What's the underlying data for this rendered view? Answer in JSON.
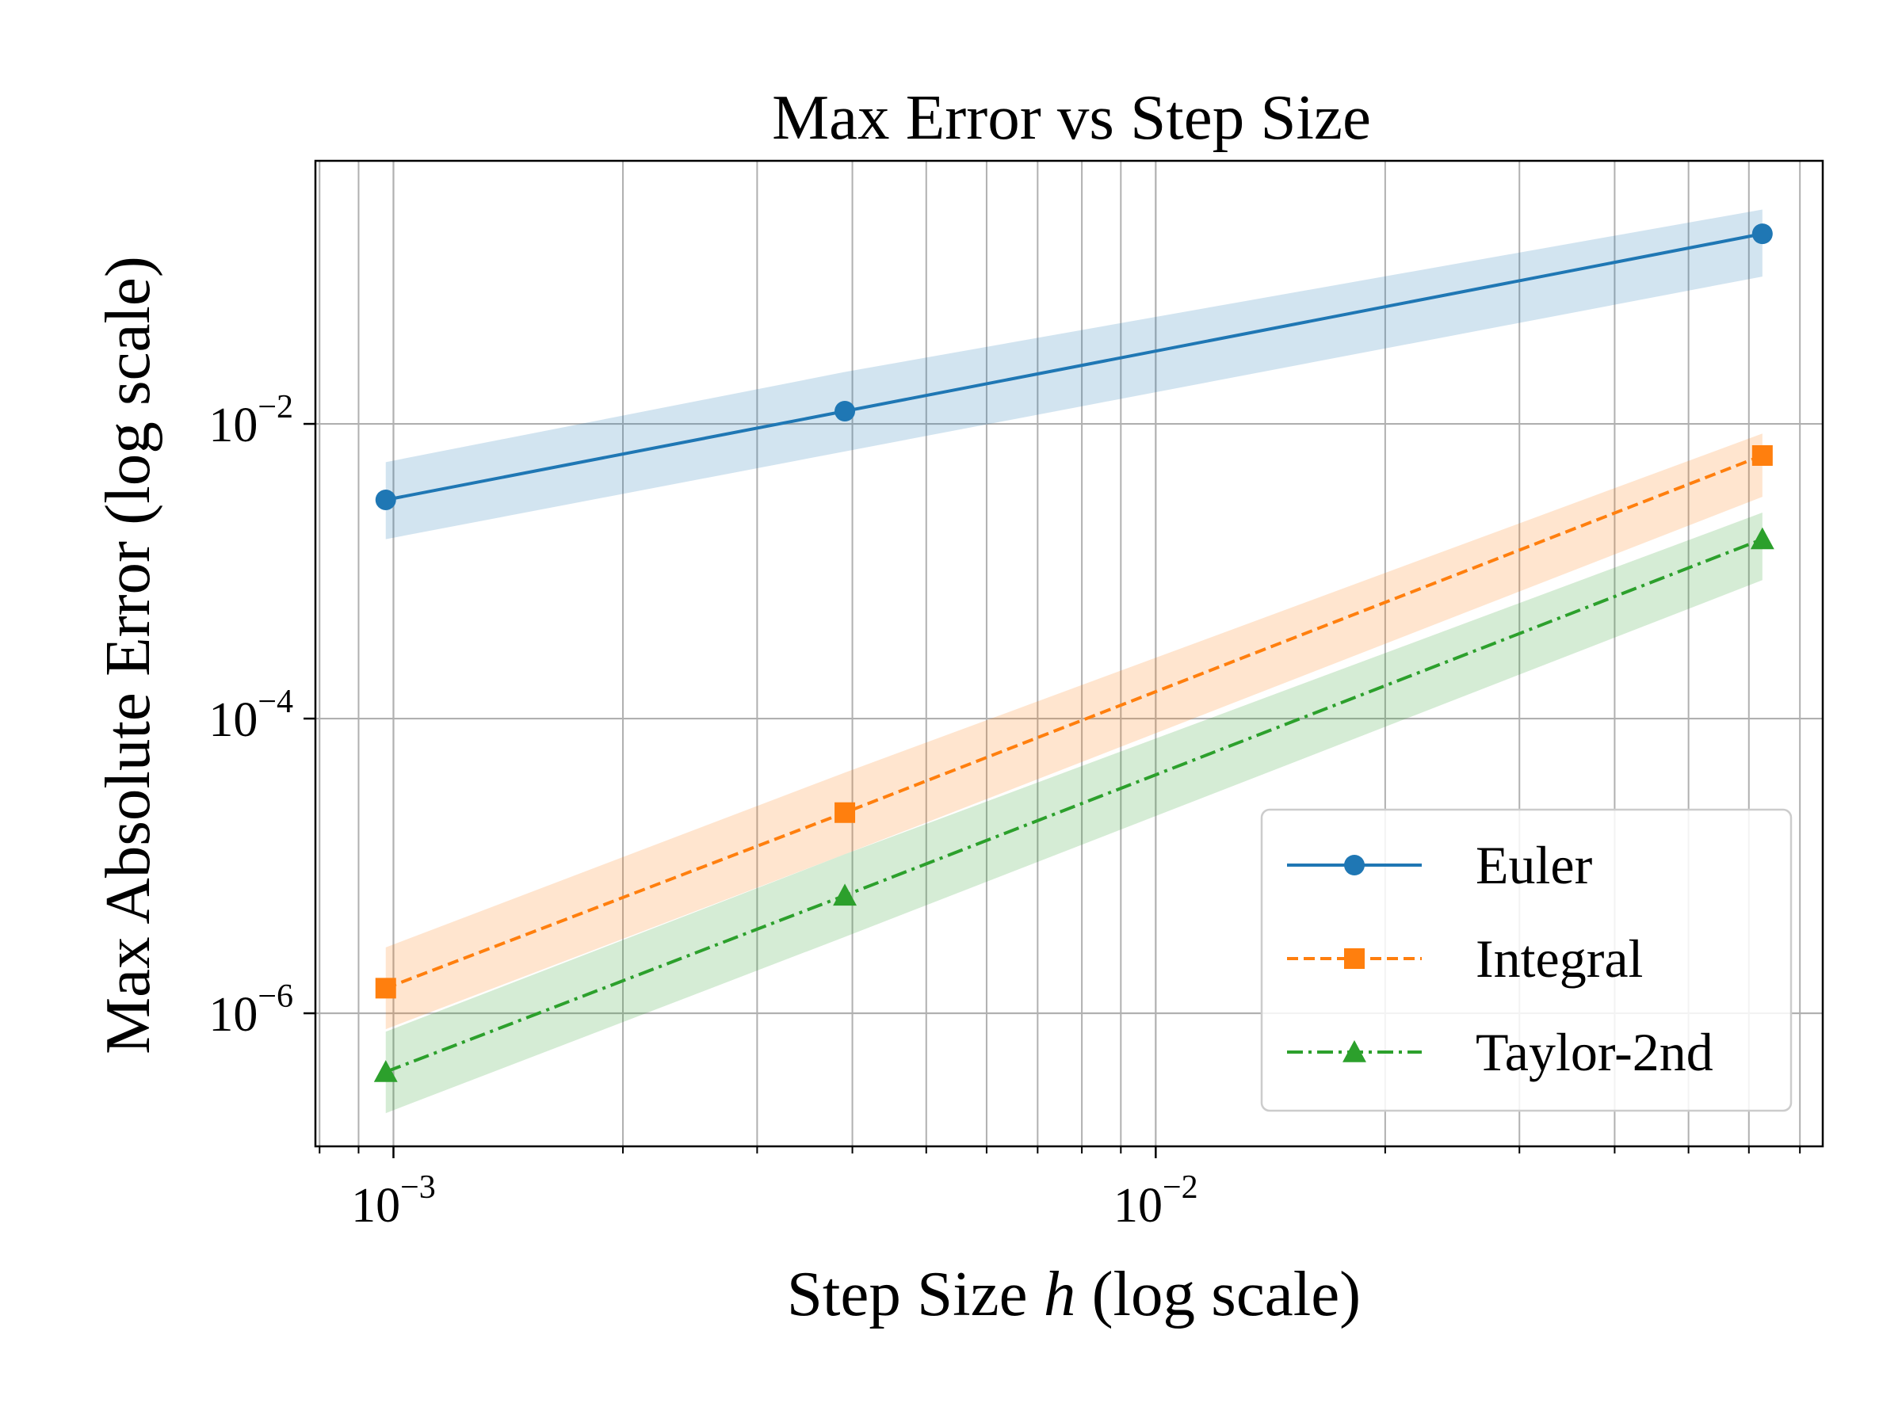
{
  "chart_data": {
    "type": "line",
    "title": "Max Error vs Step Size",
    "xlabel_prefix": "Step Size ",
    "xlabel_var": "h",
    "xlabel_suffix": " (log scale)",
    "ylabel": "Max Absolute Error (log scale)",
    "xscale": "log",
    "yscale": "log",
    "xlim": [
      0.00079,
      0.075
    ],
    "ylim": [
      1.25e-07,
      0.61
    ],
    "grid": true,
    "grid_minor_x": true,
    "legend_position": "lower-right",
    "x_ticks": [
      {
        "value": 0.001,
        "base": "10",
        "exp": "−3"
      },
      {
        "value": 0.01,
        "base": "10",
        "exp": "−2"
      }
    ],
    "y_ticks": [
      {
        "value": 0.01,
        "base": "10",
        "exp": "−2"
      },
      {
        "value": 0.0001,
        "base": "10",
        "exp": "−4"
      },
      {
        "value": 1e-06,
        "base": "10",
        "exp": "−6"
      }
    ],
    "x": [
      0.000977,
      0.00391,
      0.0625
    ],
    "series": [
      {
        "name": "Euler",
        "color": "#1f77b4",
        "band_color": "#1f77b4",
        "marker": "circle",
        "linestyle": "solid",
        "values": [
          0.00305,
          0.0122,
          0.195
        ],
        "band_lower": [
          0.00165,
          0.0065,
          0.1
        ],
        "band_upper": [
          0.0055,
          0.0225,
          0.285
        ]
      },
      {
        "name": "Integral",
        "color": "#ff7f0e",
        "band_color": "#ff7f0e",
        "marker": "square",
        "linestyle": "dashed",
        "values": [
          1.48e-06,
          2.3e-05,
          0.0061
        ],
        "band_lower": [
          7.8e-07,
          1.2e-05,
          0.0032
        ],
        "band_upper": [
          2.8e-06,
          4.3e-05,
          0.0086
        ]
      },
      {
        "name": "Taylor-2nd",
        "color": "#2ca02c",
        "band_color": "#2ca02c",
        "marker": "triangle",
        "linestyle": "dashdot",
        "values": [
          4e-07,
          6.3e-06,
          0.00165
        ],
        "band_lower": [
          2.1e-07,
          3.3e-06,
          0.00087
        ],
        "band_upper": [
          7.5e-07,
          1.2e-05,
          0.0025
        ]
      }
    ]
  }
}
